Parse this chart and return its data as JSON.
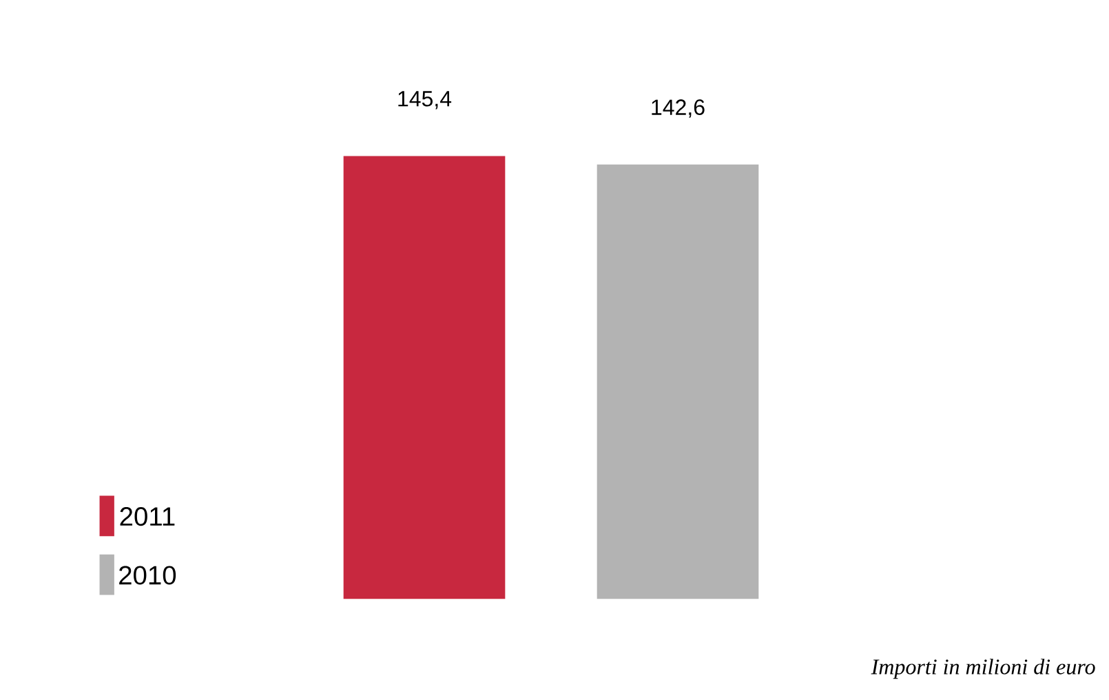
{
  "chart_data": {
    "type": "bar",
    "categories": [
      null
    ],
    "series": [
      {
        "name": "2011",
        "color": "#c8283f",
        "values": [
          145.4
        ],
        "value_labels": [
          "145,4"
        ]
      },
      {
        "name": "2010",
        "color": "#b3b3b3",
        "values": [
          142.6
        ],
        "value_labels": [
          "142,6"
        ]
      }
    ],
    "legend": "bottom left",
    "annotations": [
      "Importi in milioni di euro"
    ]
  }
}
